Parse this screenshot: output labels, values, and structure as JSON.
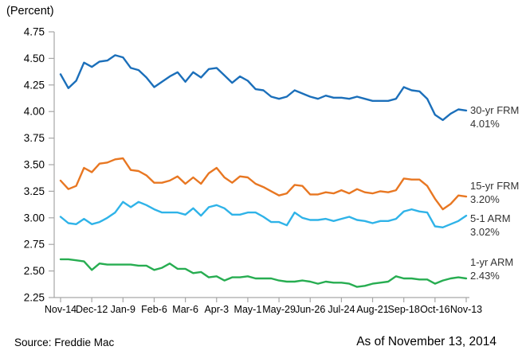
{
  "chart_data": {
    "type": "line",
    "title": "(Percent)",
    "points_per_tick_interval": 4,
    "x_tick_labels": [
      "Nov-14",
      "Dec-12",
      "Jan-9",
      "Feb-6",
      "Mar-6",
      "Apr-3",
      "May-1",
      "May-29",
      "Jun-26",
      "Jul-24",
      "Aug-21",
      "Sep-18",
      "Oct-16",
      "Nov-13"
    ],
    "y_tick_labels": [
      "4.75",
      "4.50",
      "4.25",
      "4.00",
      "3.75",
      "3.50",
      "3.25",
      "3.00",
      "2.75",
      "2.50",
      "2.25"
    ],
    "ylim": [
      2.25,
      4.75
    ],
    "grid": false,
    "legend_position": "right-end-labels",
    "axis_color": "#a6a6a6",
    "series": [
      {
        "name": "30-yr FRM",
        "end_label_value": "4.01%",
        "color": "#1b6fba",
        "values": [
          4.35,
          4.22,
          4.29,
          4.46,
          4.42,
          4.47,
          4.48,
          4.53,
          4.51,
          4.41,
          4.39,
          4.32,
          4.23,
          4.28,
          4.33,
          4.37,
          4.28,
          4.37,
          4.32,
          4.4,
          4.41,
          4.34,
          4.27,
          4.33,
          4.29,
          4.21,
          4.2,
          4.14,
          4.12,
          4.14,
          4.2,
          4.17,
          4.14,
          4.12,
          4.15,
          4.13,
          4.13,
          4.12,
          4.14,
          4.12,
          4.1,
          4.1,
          4.1,
          4.12,
          4.23,
          4.2,
          4.19,
          4.12,
          3.97,
          3.92,
          3.98,
          4.02,
          4.01
        ]
      },
      {
        "name": "15-yr FRM",
        "end_label_value": "3.20%",
        "color": "#e87722",
        "values": [
          3.35,
          3.27,
          3.3,
          3.47,
          3.43,
          3.51,
          3.52,
          3.55,
          3.56,
          3.45,
          3.44,
          3.4,
          3.33,
          3.33,
          3.35,
          3.39,
          3.32,
          3.38,
          3.32,
          3.42,
          3.47,
          3.38,
          3.33,
          3.39,
          3.38,
          3.32,
          3.29,
          3.25,
          3.21,
          3.23,
          3.31,
          3.3,
          3.22,
          3.22,
          3.24,
          3.23,
          3.26,
          3.23,
          3.27,
          3.24,
          3.23,
          3.25,
          3.24,
          3.26,
          3.37,
          3.36,
          3.36,
          3.3,
          3.18,
          3.08,
          3.13,
          3.21,
          3.2
        ]
      },
      {
        "name": "5-1 ARM",
        "end_label_value": "3.02%",
        "color": "#2fb3e8",
        "values": [
          3.01,
          2.95,
          2.94,
          2.99,
          2.94,
          2.96,
          3.0,
          3.05,
          3.15,
          3.1,
          3.15,
          3.12,
          3.08,
          3.05,
          3.05,
          3.05,
          3.03,
          3.09,
          3.02,
          3.1,
          3.12,
          3.09,
          3.03,
          3.03,
          3.05,
          3.05,
          3.01,
          2.96,
          2.96,
          2.93,
          3.05,
          3.0,
          2.98,
          2.98,
          2.99,
          2.97,
          2.99,
          3.01,
          2.98,
          2.97,
          2.95,
          2.97,
          2.97,
          2.99,
          3.06,
          3.08,
          3.06,
          3.05,
          2.92,
          2.91,
          2.94,
          2.97,
          3.02
        ]
      },
      {
        "name": "1-yr ARM",
        "end_label_value": "2.43%",
        "color": "#27ad51",
        "values": [
          2.61,
          2.61,
          2.6,
          2.59,
          2.51,
          2.57,
          2.56,
          2.56,
          2.56,
          2.56,
          2.55,
          2.55,
          2.51,
          2.53,
          2.57,
          2.52,
          2.52,
          2.48,
          2.49,
          2.44,
          2.45,
          2.41,
          2.44,
          2.44,
          2.45,
          2.43,
          2.43,
          2.43,
          2.41,
          2.4,
          2.4,
          2.41,
          2.4,
          2.38,
          2.4,
          2.39,
          2.39,
          2.38,
          2.35,
          2.36,
          2.38,
          2.39,
          2.4,
          2.45,
          2.43,
          2.43,
          2.42,
          2.42,
          2.38,
          2.41,
          2.43,
          2.44,
          2.43
        ]
      }
    ]
  },
  "footer": {
    "source": "Source: Freddie Mac",
    "as_of": "As of November 13, 2014"
  }
}
